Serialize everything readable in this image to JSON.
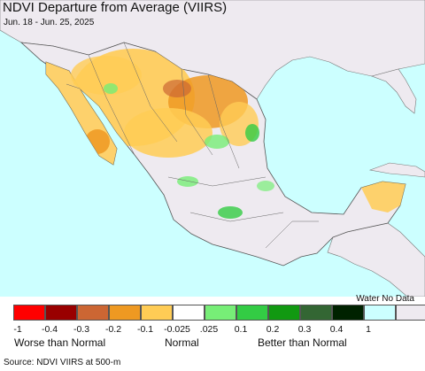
{
  "title": "NDVI Departure from Average (VIIRS)",
  "subtitle": "Jun. 18 - Jun. 25, 2025",
  "legend": {
    "no_data_label": "Water No Data",
    "bins": [
      {
        "color": "#ff0000"
      },
      {
        "color": "#990000"
      },
      {
        "color": "#cc6633"
      },
      {
        "color": "#ee9922"
      },
      {
        "color": "#ffcc55"
      },
      {
        "color": "#ffffff"
      },
      {
        "color": "#77ee77"
      },
      {
        "color": "#33cc44"
      },
      {
        "color": "#119911"
      },
      {
        "color": "#336633"
      },
      {
        "color": "#002200"
      },
      {
        "color": "#ccffff"
      },
      {
        "color": "#eeeaf0"
      }
    ],
    "ticks": [
      "-1",
      "-0.4",
      "-0.3",
      "-0.2",
      "-0.1",
      "-0.025",
      ".025",
      "0.1",
      "0.2",
      "0.3",
      "0.4",
      "1"
    ],
    "categories": [
      "Worse than Normal",
      "Normal",
      "Better than Normal"
    ]
  },
  "source": "Source: NDVI VIIRS at 500-m",
  "colors": {
    "water": "#ccffff",
    "land_no_data": "#eeeaf0",
    "borders": "#555555"
  }
}
